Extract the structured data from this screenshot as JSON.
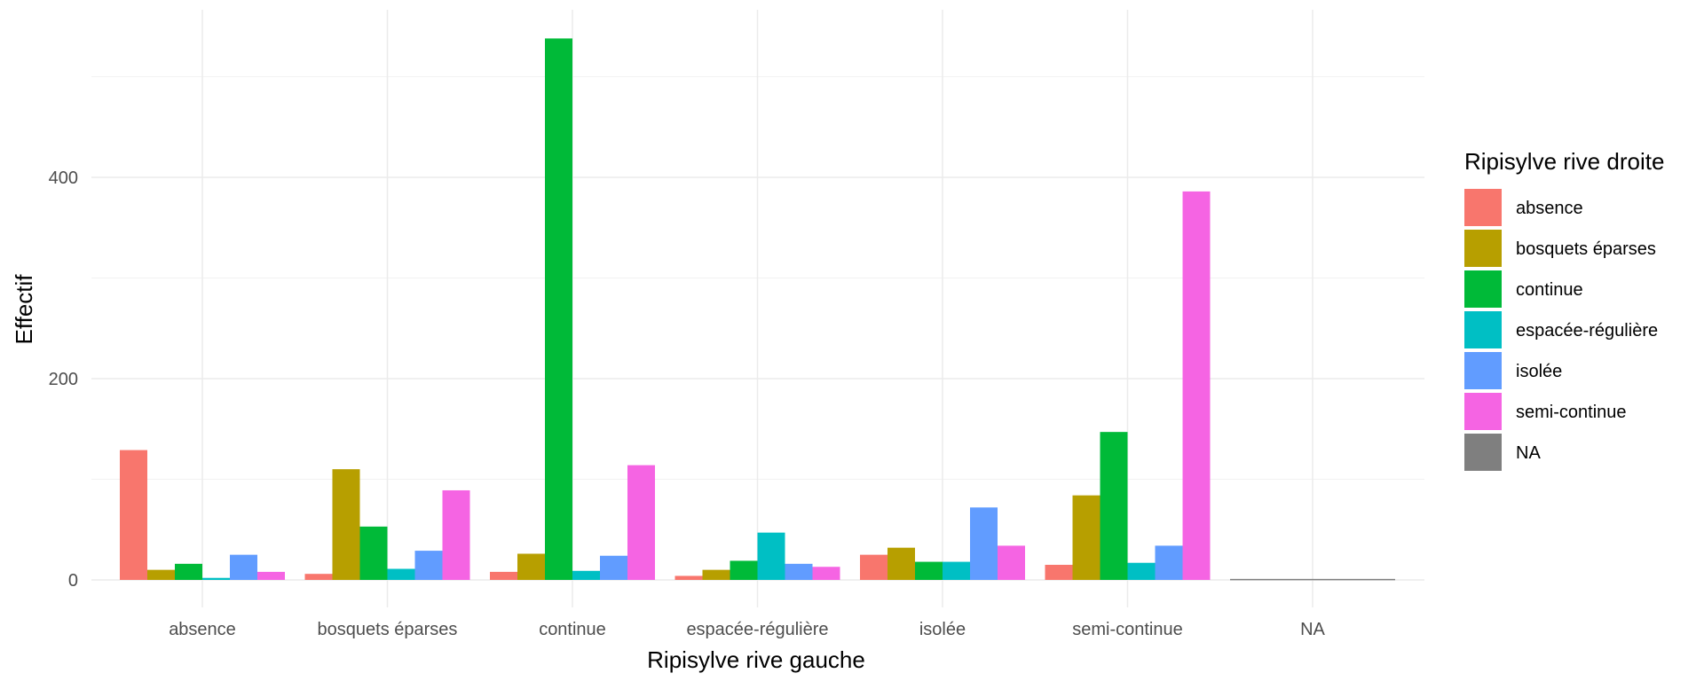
{
  "chart_data": {
    "type": "bar",
    "xlabel": "Ripisylve rive gauche",
    "ylabel": "Effectif",
    "ylim": [
      -30,
      565
    ],
    "yticks": [
      0,
      200,
      400
    ],
    "grid": true,
    "legend_position": "right",
    "legend_title": "Ripisylve rive droite",
    "categories": [
      "absence",
      "bosquets éparses",
      "continue",
      "espacée-régulière",
      "isolée",
      "semi-continue",
      "NA"
    ],
    "series": [
      {
        "name": "absence",
        "color": "#F8766D",
        "values": [
          129,
          6,
          8,
          4,
          25,
          15,
          null
        ]
      },
      {
        "name": "bosquets éparses",
        "color": "#B79F00",
        "values": [
          10,
          110,
          26,
          10,
          32,
          84,
          null
        ]
      },
      {
        "name": "continue",
        "color": "#00BA38",
        "values": [
          16,
          53,
          538,
          19,
          18,
          147,
          null
        ]
      },
      {
        "name": "espacée-régulière",
        "color": "#00BFC4",
        "values": [
          2,
          11,
          9,
          47,
          18,
          17,
          null
        ]
      },
      {
        "name": "isolée",
        "color": "#619CFF",
        "values": [
          25,
          29,
          24,
          16,
          72,
          34,
          null
        ]
      },
      {
        "name": "semi-continue",
        "color": "#F564E3",
        "values": [
          8,
          89,
          114,
          13,
          34,
          386,
          null
        ]
      },
      {
        "name": "NA",
        "color": "#7F7F7F",
        "values": [
          null,
          null,
          null,
          null,
          null,
          null,
          1
        ]
      }
    ]
  }
}
